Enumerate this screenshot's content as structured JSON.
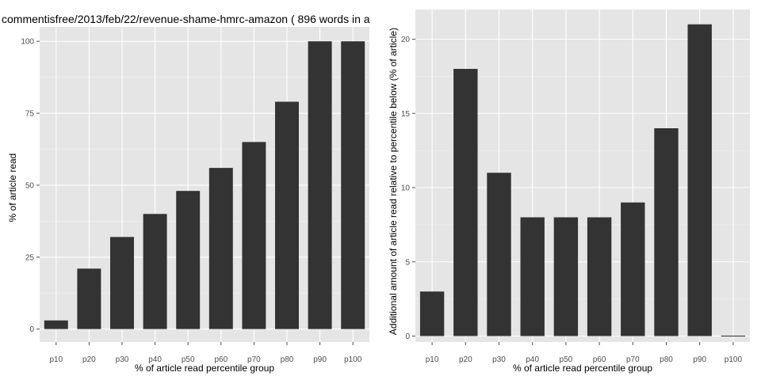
{
  "chart_data": [
    {
      "type": "bar",
      "title": "commentisfree/2013/feb/22/revenue-shame-hmrc-amazon ( 896 words in a",
      "xlabel": "% of article read percentile group",
      "ylabel": "% of article read",
      "categories": [
        "p10",
        "p20",
        "p30",
        "p40",
        "p50",
        "p60",
        "p70",
        "p80",
        "p90",
        "p100"
      ],
      "values": [
        3,
        21,
        32,
        40,
        48,
        56,
        65,
        79,
        100,
        100
      ],
      "ylim": [
        -4.5,
        105
      ],
      "yticks": [
        0,
        25,
        50,
        75,
        100
      ],
      "ytick_labels": [
        "0",
        "25",
        "50",
        "75",
        "100"
      ],
      "grid": true,
      "bar_color": "#333333",
      "panel_color": "#e5e5e5"
    },
    {
      "type": "bar",
      "title": "",
      "xlabel": "% of article read percentile group",
      "ylabel": "Additional amount of article read relative to percentile below (% of article)",
      "categories": [
        "p10",
        "p20",
        "p30",
        "p40",
        "p50",
        "p60",
        "p70",
        "p80",
        "p90",
        "p100"
      ],
      "values": [
        3,
        18,
        11,
        8,
        8,
        8,
        9,
        14,
        21,
        0
      ],
      "ylim": [
        -0.4,
        22
      ],
      "yticks": [
        0,
        5,
        10,
        15,
        20
      ],
      "ytick_labels": [
        "0",
        "5",
        "10",
        "15",
        "20"
      ],
      "grid": true,
      "bar_color": "#333333",
      "panel_color": "#e5e5e5"
    }
  ]
}
